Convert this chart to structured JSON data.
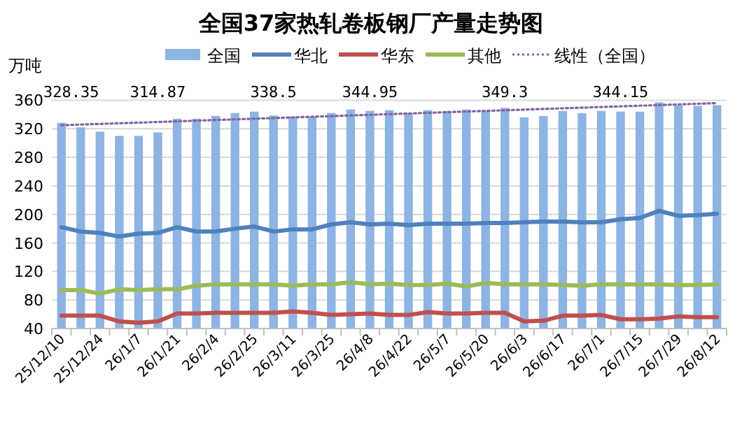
{
  "chart_data": {
    "type": "bar",
    "title": "全国37家热轧卷板钢厂产量走势图",
    "ylabel": "万吨",
    "categories": [
      "25/12/10",
      null,
      "25/12/24",
      null,
      "26/1/7",
      null,
      "26/1/21",
      null,
      "26/2/4",
      null,
      "26/2/25",
      null,
      "26/3/11",
      null,
      "26/3/25",
      null,
      "26/4/8",
      null,
      "26/4/22",
      null,
      "26/5/7",
      null,
      "26/5/20",
      null,
      "26/6/3",
      null,
      "26/6/17",
      null,
      "26/7/1",
      null,
      "26/7/15",
      null,
      "26/7/29",
      null,
      "26/8/12"
    ],
    "series": [
      {
        "name": "全国",
        "color": "#8db4e2",
        "values": [
          328.35,
          322,
          316,
          310,
          310,
          314.87,
          334,
          334,
          338,
          342,
          344,
          338.5,
          337,
          337,
          342,
          347,
          344.95,
          346,
          342,
          346,
          345,
          347,
          345,
          349.3,
          336,
          338,
          345,
          342,
          345,
          344.15,
          344,
          357,
          353,
          352,
          353
        ],
        "value_labels": [
          "328.35",
          null,
          null,
          null,
          null,
          "314.87",
          null,
          null,
          null,
          null,
          null,
          "338.5",
          null,
          null,
          null,
          null,
          "344.95",
          null,
          null,
          null,
          null,
          null,
          null,
          "349.3",
          null,
          null,
          null,
          null,
          null,
          "344.15",
          null,
          null,
          null,
          null,
          null
        ]
      },
      {
        "name": "华北",
        "type": "line",
        "color": "#4f81bd",
        "values": [
          182,
          176,
          174,
          169,
          173,
          174,
          182,
          176,
          176,
          180,
          183,
          176,
          179,
          179,
          186,
          189,
          186,
          187,
          185,
          187,
          187,
          187,
          188,
          188,
          189,
          190,
          190,
          189,
          189,
          193,
          195,
          205,
          198,
          199,
          201
        ]
      },
      {
        "name": "华东",
        "type": "line",
        "color": "#c0504d",
        "values": [
          58,
          58,
          58,
          50,
          48,
          50,
          61,
          61,
          62,
          62,
          62,
          62,
          64,
          62,
          59,
          60,
          61,
          59,
          59,
          63,
          61,
          61,
          62,
          62,
          50,
          51,
          58,
          58,
          59,
          53,
          53,
          54,
          57,
          56,
          56
        ]
      },
      {
        "name": "其他",
        "type": "line",
        "color": "#9bbb59",
        "values": [
          94,
          94,
          89,
          95,
          94,
          95,
          95,
          100,
          102,
          102,
          102,
          102,
          100,
          102,
          102,
          105,
          102,
          103,
          101,
          101,
          103,
          99,
          104,
          102,
          102,
          102,
          101,
          100,
          102,
          102,
          102,
          102,
          101,
          101,
          102
        ]
      },
      {
        "name": "线性（全国）",
        "type": "line",
        "line_style": "dotted",
        "color": "#8064a2",
        "x": [
          "25/12/10",
          "26/8/12"
        ],
        "values": [
          325,
          356
        ]
      }
    ],
    "ylim": [
      40,
      360
    ],
    "yticks": [
      40,
      80,
      120,
      160,
      200,
      240,
      280,
      320,
      360
    ],
    "grid": "y",
    "legend": "top"
  }
}
